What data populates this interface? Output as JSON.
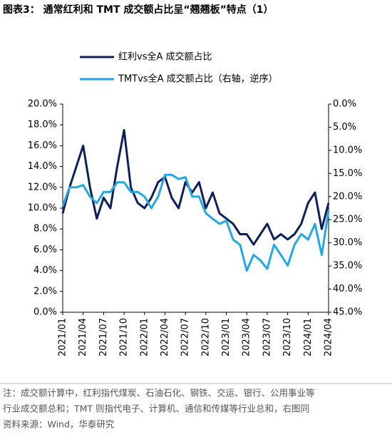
{
  "chart_data": {
    "type": "line",
    "title": "图表3：  通常红利和 TMT 成交额占比呈“翘翘板”特点（1）",
    "categories": [
      "2021/01",
      null,
      null,
      "2021/04",
      null,
      null,
      "2021/07",
      null,
      null,
      "2021/10",
      null,
      null,
      "2022/01",
      null,
      null,
      "2022/04",
      null,
      null,
      "2022/07",
      null,
      null,
      "2022/10",
      null,
      null,
      "2023/01",
      null,
      null,
      "2023/04",
      null,
      null,
      "2023/07",
      null,
      null,
      "2023/10",
      null,
      null,
      "2024/01",
      null,
      null,
      "2024/04"
    ],
    "series": [
      {
        "name": "红利vs全A 成交额占比",
        "color": "#0d1f5e",
        "axis": "y",
        "values": [
          9.5,
          12.0,
          14.0,
          16.0,
          12.0,
          9.0,
          11.0,
          10.0,
          14.0,
          17.5,
          12.0,
          10.5,
          10.0,
          11.0,
          12.5,
          13.0,
          11.0,
          10.0,
          12.5,
          11.5,
          12.5,
          10.0,
          11.5,
          9.5,
          9.0,
          8.5,
          7.5,
          7.5,
          6.5,
          7.5,
          8.5,
          7.0,
          7.5,
          7.0,
          7.5,
          8.5,
          10.5,
          11.5,
          8.0,
          10.5
        ]
      },
      {
        "name": "TMTvs全A 成交额占比（右轴，逆序）",
        "color": "#22a8e6",
        "axis": "y2",
        "values": [
          22,
          18,
          18,
          17.5,
          20,
          21.4,
          19,
          19,
          16.9,
          16.9,
          19,
          19,
          20,
          22.5,
          20,
          15.3,
          15.3,
          16.2,
          15.8,
          20,
          20,
          23.6,
          24.8,
          25.9,
          25.2,
          29.3,
          30.4,
          36,
          32.6,
          33.8,
          35.6,
          30.4,
          32.6,
          34.9,
          30.4,
          28.1,
          29.3,
          25.9,
          32.6,
          23
        ]
      }
    ],
    "ylim": [
      0,
      20
    ],
    "yticks": [
      {
        "value": 0,
        "label": "0.0%"
      },
      {
        "value": 2,
        "label": "2.0%"
      },
      {
        "value": 4,
        "label": "4.0%"
      },
      {
        "value": 6,
        "label": "6.0%"
      },
      {
        "value": 8,
        "label": "8.0%"
      },
      {
        "value": 10,
        "label": "10.0%"
      },
      {
        "value": 12,
        "label": "12.0%"
      },
      {
        "value": 14,
        "label": "14.0%"
      },
      {
        "value": 16,
        "label": "16.0%"
      },
      {
        "value": 18,
        "label": "18.0%"
      },
      {
        "value": 20,
        "label": "20.0%"
      }
    ],
    "y2lim": [
      45,
      0
    ],
    "y2ticks": [
      {
        "value": 0,
        "label": "0.0%"
      },
      {
        "value": 5,
        "label": "5.0%"
      },
      {
        "value": 10,
        "label": "10.0%"
      },
      {
        "value": 15,
        "label": "15.0%"
      },
      {
        "value": 20,
        "label": "20.0%"
      },
      {
        "value": 25,
        "label": "25.0%"
      },
      {
        "value": 30,
        "label": "30.0%"
      },
      {
        "value": 35,
        "label": "35.0%"
      },
      {
        "value": 40,
        "label": "40.0%"
      },
      {
        "value": 45,
        "label": "45.0%"
      }
    ],
    "notes": [
      "注：成交额计算中，红利指代煤炭、石油石化、钢铁、交运、银行、公用事业等",
      "行业成交额总和；TMT 则指代电子、计算机、通信和传媒等行业总和，右图同",
      "资料来源：Wind，华泰研究"
    ]
  }
}
